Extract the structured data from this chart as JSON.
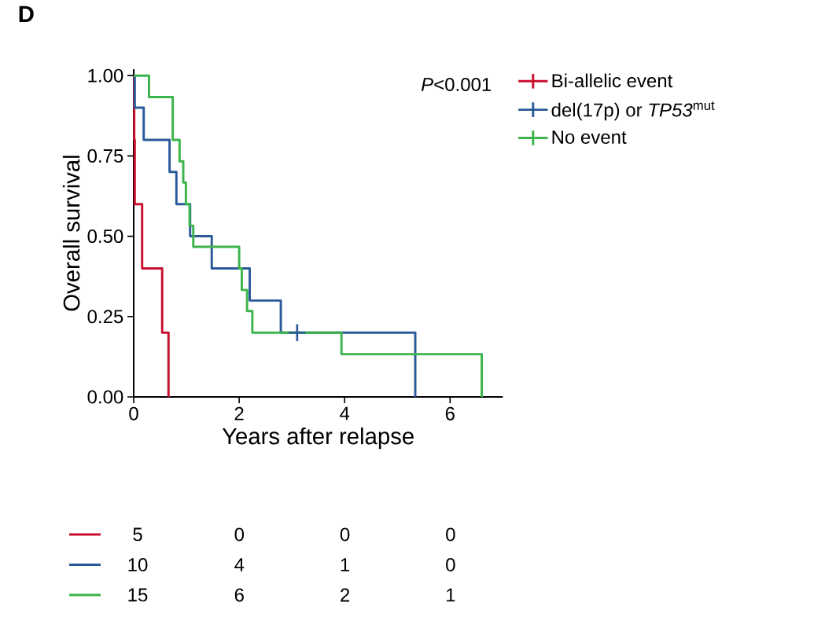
{
  "chart_data": {
    "type": "step",
    "title": "D",
    "xlabel": "Years after relapse",
    "ylabel": "Overall survival",
    "xlim": [
      0,
      7
    ],
    "ylim": [
      0,
      1.02
    ],
    "xticks": [
      0,
      2,
      4,
      6
    ],
    "yticks": [
      {
        "value": 0,
        "label": "0.00"
      },
      {
        "value": 0.25,
        "label": "0.25"
      },
      {
        "value": 0.5,
        "label": "0.50"
      },
      {
        "value": 0.75,
        "label": "0.75"
      },
      {
        "value": 1,
        "label": "1.00"
      }
    ],
    "grid": false,
    "legend": "top right",
    "series": [
      {
        "name": "Bi-allelic event",
        "color": "#c8102e",
        "x": [
          0,
          0.01,
          0.02,
          0.16,
          0.54,
          0.66
        ],
        "values": [
          1,
          0.8,
          0.6,
          0.4,
          0.2,
          0
        ]
      },
      {
        "name": "del(17p) or *TP53*$^{mut}$",
        "color": "#2a5a9a",
        "x": [
          0,
          0.02,
          0.19,
          0.68,
          0.81,
          1.07,
          1.48,
          2.2,
          2.79,
          5.34
        ],
        "values": [
          1,
          0.9,
          0.8,
          0.7,
          0.6,
          0.5,
          0.4,
          0.3,
          0.2,
          0
        ]
      },
      {
        "name": "No event",
        "color": "#3cb44b",
        "x": [
          0,
          0.29,
          0.74,
          0.87,
          0.94,
          0.99,
          1.06,
          1.13,
          2.0,
          2.05,
          2.15,
          2.25,
          3.94,
          6.6
        ],
        "values": [
          1,
          0.933,
          0.8,
          0.733,
          0.667,
          0.6,
          0.533,
          0.467,
          0.4,
          0.333,
          0.267,
          0.2,
          0.133,
          0
        ]
      },
      {
        "type": "scatter",
        "marker": "cross",
        "color": "#2a5a9a",
        "x": [
          3.1
        ],
        "values": [
          0.2
        ]
      }
    ],
    "annotations": [
      "*P*<0.001",
      "5",
      "0",
      "0",
      "0",
      "10",
      "4",
      "1",
      "0",
      "15",
      "6",
      "2",
      "1"
    ]
  }
}
